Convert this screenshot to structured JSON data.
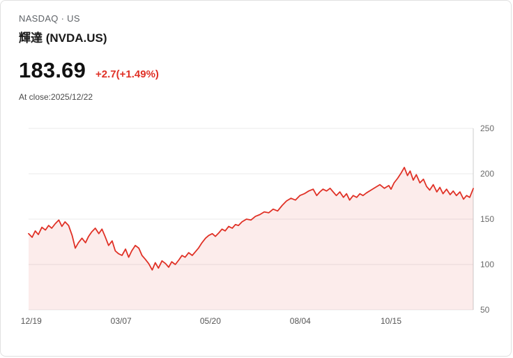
{
  "header": {
    "exchange_line": "NASDAQ · US",
    "name": "輝達 (NVDA.US)",
    "price": "183.69",
    "change": "+2.7(+1.49%)",
    "as_of": "At close:2025/12/22"
  },
  "colors": {
    "accent": "#e03126",
    "area_fill": "rgba(224, 49, 38, 0.09)",
    "grid": "#ebebeb",
    "axis_line": "#cccccc",
    "axis_text": "#6b6b6b",
    "x_tick_text": "#555555"
  },
  "chart_data": {
    "type": "area",
    "title": "NVDA.US closing price, 12/19/2024 - 12/22/2025",
    "xlabel": "",
    "ylabel": "",
    "ylim": [
      50,
      250
    ],
    "y_ticks": [
      250,
      200,
      150,
      100,
      50
    ],
    "x_ticks": [
      {
        "label": "12/19",
        "pos": 0.006
      },
      {
        "label": "03/07",
        "pos": 0.208
      },
      {
        "label": "05/20",
        "pos": 0.409
      },
      {
        "label": "08/04",
        "pos": 0.611
      },
      {
        "label": "10/15",
        "pos": 0.815
      }
    ],
    "grid": "horizontal",
    "legend": "none",
    "points": [
      [
        0,
        134
      ],
      [
        0.008,
        130
      ],
      [
        0.015,
        137
      ],
      [
        0.022,
        133
      ],
      [
        0.03,
        141
      ],
      [
        0.038,
        138
      ],
      [
        0.045,
        143
      ],
      [
        0.052,
        140
      ],
      [
        0.06,
        145
      ],
      [
        0.068,
        149
      ],
      [
        0.075,
        142
      ],
      [
        0.082,
        147
      ],
      [
        0.09,
        143
      ],
      [
        0.098,
        132
      ],
      [
        0.105,
        118
      ],
      [
        0.112,
        124
      ],
      [
        0.12,
        129
      ],
      [
        0.128,
        124
      ],
      [
        0.135,
        131
      ],
      [
        0.142,
        136
      ],
      [
        0.15,
        140
      ],
      [
        0.158,
        134
      ],
      [
        0.165,
        139
      ],
      [
        0.172,
        131
      ],
      [
        0.18,
        121
      ],
      [
        0.188,
        126
      ],
      [
        0.195,
        115
      ],
      [
        0.202,
        112
      ],
      [
        0.21,
        110
      ],
      [
        0.218,
        117
      ],
      [
        0.225,
        108
      ],
      [
        0.232,
        115
      ],
      [
        0.24,
        121
      ],
      [
        0.248,
        118
      ],
      [
        0.255,
        110
      ],
      [
        0.262,
        106
      ],
      [
        0.27,
        101
      ],
      [
        0.278,
        94
      ],
      [
        0.285,
        102
      ],
      [
        0.292,
        96
      ],
      [
        0.3,
        104
      ],
      [
        0.308,
        101
      ],
      [
        0.315,
        97
      ],
      [
        0.322,
        103
      ],
      [
        0.33,
        100
      ],
      [
        0.338,
        105
      ],
      [
        0.345,
        110
      ],
      [
        0.352,
        108
      ],
      [
        0.36,
        113
      ],
      [
        0.368,
        110
      ],
      [
        0.375,
        114
      ],
      [
        0.382,
        118
      ],
      [
        0.39,
        124
      ],
      [
        0.398,
        129
      ],
      [
        0.405,
        132
      ],
      [
        0.413,
        134
      ],
      [
        0.42,
        131
      ],
      [
        0.428,
        135
      ],
      [
        0.435,
        139
      ],
      [
        0.442,
        137
      ],
      [
        0.45,
        142
      ],
      [
        0.458,
        140
      ],
      [
        0.465,
        144
      ],
      [
        0.472,
        143
      ],
      [
        0.48,
        147
      ],
      [
        0.49,
        150
      ],
      [
        0.5,
        149
      ],
      [
        0.51,
        153
      ],
      [
        0.52,
        155
      ],
      [
        0.53,
        158
      ],
      [
        0.54,
        157
      ],
      [
        0.55,
        161
      ],
      [
        0.56,
        159
      ],
      [
        0.57,
        165
      ],
      [
        0.58,
        170
      ],
      [
        0.59,
        173
      ],
      [
        0.6,
        171
      ],
      [
        0.61,
        176
      ],
      [
        0.62,
        178
      ],
      [
        0.63,
        181
      ],
      [
        0.64,
        183
      ],
      [
        0.648,
        176
      ],
      [
        0.655,
        180
      ],
      [
        0.662,
        183
      ],
      [
        0.67,
        181
      ],
      [
        0.678,
        184
      ],
      [
        0.685,
        180
      ],
      [
        0.692,
        176
      ],
      [
        0.7,
        180
      ],
      [
        0.708,
        174
      ],
      [
        0.715,
        178
      ],
      [
        0.722,
        171
      ],
      [
        0.73,
        176
      ],
      [
        0.738,
        174
      ],
      [
        0.745,
        178
      ],
      [
        0.752,
        176
      ],
      [
        0.76,
        179
      ],
      [
        0.77,
        182
      ],
      [
        0.78,
        185
      ],
      [
        0.79,
        188
      ],
      [
        0.8,
        184
      ],
      [
        0.81,
        187
      ],
      [
        0.815,
        183
      ],
      [
        0.822,
        190
      ],
      [
        0.83,
        195
      ],
      [
        0.838,
        201
      ],
      [
        0.845,
        207
      ],
      [
        0.852,
        198
      ],
      [
        0.858,
        203
      ],
      [
        0.865,
        193
      ],
      [
        0.872,
        199
      ],
      [
        0.88,
        190
      ],
      [
        0.888,
        194
      ],
      [
        0.895,
        186
      ],
      [
        0.902,
        182
      ],
      [
        0.91,
        188
      ],
      [
        0.918,
        180
      ],
      [
        0.925,
        185
      ],
      [
        0.932,
        178
      ],
      [
        0.94,
        183
      ],
      [
        0.948,
        177
      ],
      [
        0.955,
        181
      ],
      [
        0.962,
        176
      ],
      [
        0.97,
        180
      ],
      [
        0.978,
        172
      ],
      [
        0.985,
        176
      ],
      [
        0.992,
        174
      ],
      [
        1,
        183.69
      ]
    ]
  }
}
